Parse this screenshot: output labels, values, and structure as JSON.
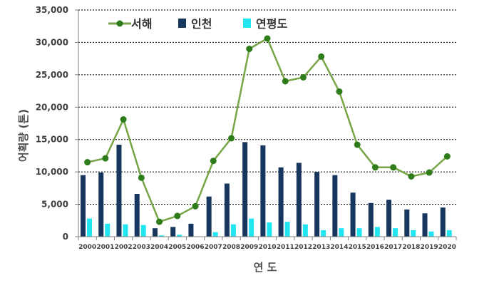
{
  "chart_data": {
    "type": "bar",
    "categories": [
      "2000",
      "2001",
      "2002",
      "2003",
      "2004",
      "2005",
      "2006",
      "2007",
      "2008",
      "2009",
      "2010",
      "2011",
      "2012",
      "2013",
      "2014",
      "2015",
      "2016",
      "2017",
      "2018",
      "2019",
      "2020"
    ],
    "series": [
      {
        "name": "서해",
        "kind": "line",
        "color": "#77a547",
        "marker_color": "#2e7d1a",
        "values": [
          11500,
          12100,
          18100,
          9100,
          2300,
          3200,
          4700,
          11700,
          15200,
          29000,
          30600,
          24000,
          24600,
          27800,
          22400,
          14200,
          10700,
          10700,
          9300,
          9900,
          12400
        ]
      },
      {
        "name": "인천",
        "kind": "bar",
        "color": "#17365d",
        "values": [
          9500,
          9900,
          14200,
          6600,
          1300,
          1500,
          2000,
          6200,
          8200,
          14600,
          14100,
          10700,
          11400,
          10000,
          9500,
          6800,
          5200,
          5700,
          4200,
          3600,
          4500
        ]
      },
      {
        "name": "연평도",
        "kind": "bar",
        "color": "#22e5f2",
        "values": [
          2800,
          2000,
          1900,
          1800,
          200,
          300,
          0,
          700,
          1900,
          2800,
          2200,
          2300,
          1900,
          1000,
          1300,
          1300,
          1500,
          1300,
          1000,
          800,
          1000
        ]
      }
    ],
    "xlabel": "연 도",
    "ylabel": "어획량 (톤)",
    "ylim": [
      0,
      35000
    ],
    "yticks": [
      0,
      5000,
      10000,
      15000,
      20000,
      25000,
      30000,
      35000
    ],
    "ytick_labels": [
      "0",
      "5,000",
      "10,000",
      "15,000",
      "20,000",
      "25,000",
      "30,000",
      "35,000"
    ],
    "grid": "horizontal dashed",
    "legend_position": "top"
  }
}
